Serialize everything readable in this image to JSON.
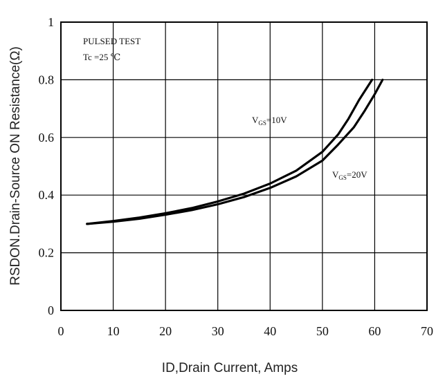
{
  "chart_data": {
    "type": "line",
    "xlabel": "ID,Drain Current, Amps",
    "ylabel": "RSDON.Drain-Source ON Resistance(Ω)",
    "xlim": [
      0,
      70
    ],
    "ylim": [
      0,
      1
    ],
    "x_ticks": [
      "0",
      "10",
      "20",
      "30",
      "40",
      "50",
      "60",
      "70"
    ],
    "y_ticks": [
      "0",
      "0.2",
      "0.4",
      "0.6",
      "0.8",
      "1"
    ],
    "grid": true,
    "annotations": [
      "PULSED   TEST",
      "Tc =25 ℃"
    ],
    "series": [
      {
        "name": "VGS=10V",
        "label_main": "V",
        "label_sub": "GS",
        "label_rest": "=10V",
        "x": [
          5,
          10,
          15,
          20,
          25,
          30,
          35,
          40,
          45,
          50,
          53,
          55,
          57,
          59.5
        ],
        "y": [
          0.3,
          0.31,
          0.322,
          0.337,
          0.355,
          0.378,
          0.405,
          0.44,
          0.485,
          0.55,
          0.61,
          0.665,
          0.73,
          0.8
        ]
      },
      {
        "name": "VGS=20V",
        "label_main": "V",
        "label_sub": "GS",
        "label_rest": "=20V",
        "x": [
          5,
          10,
          15,
          20,
          25,
          30,
          35,
          40,
          45,
          50,
          53,
          56,
          58,
          60,
          61.5
        ],
        "y": [
          0.3,
          0.308,
          0.318,
          0.332,
          0.348,
          0.368,
          0.393,
          0.425,
          0.465,
          0.52,
          0.575,
          0.635,
          0.69,
          0.75,
          0.8
        ]
      }
    ]
  }
}
